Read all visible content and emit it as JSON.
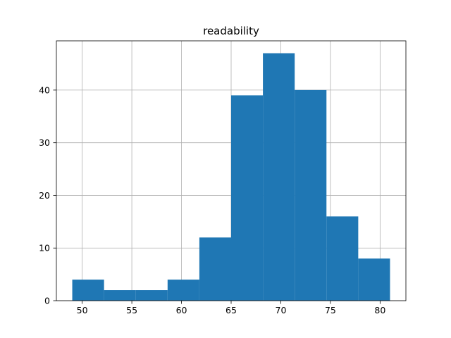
{
  "chart_data": {
    "type": "bar",
    "title": "readability",
    "xlabel": "",
    "ylabel": "",
    "bins": [
      {
        "x0": 49.0,
        "x1": 52.2,
        "value": 4
      },
      {
        "x0": 52.2,
        "x1": 55.4,
        "value": 2
      },
      {
        "x0": 55.4,
        "x1": 58.6,
        "value": 2
      },
      {
        "x0": 58.6,
        "x1": 61.8,
        "value": 4
      },
      {
        "x0": 61.8,
        "x1": 65.0,
        "value": 12
      },
      {
        "x0": 65.0,
        "x1": 68.2,
        "value": 39
      },
      {
        "x0": 68.2,
        "x1": 71.4,
        "value": 47
      },
      {
        "x0": 71.4,
        "x1": 74.6,
        "value": 40
      },
      {
        "x0": 74.6,
        "x1": 77.8,
        "value": 16
      },
      {
        "x0": 77.8,
        "x1": 81.0,
        "value": 8
      }
    ],
    "xlim": [
      47.4,
      82.6
    ],
    "ylim": [
      0,
      49.35
    ],
    "xticks": [
      50,
      55,
      60,
      65,
      70,
      75,
      80
    ],
    "yticks": [
      0,
      10,
      20,
      30,
      40
    ],
    "grid": true,
    "bar_color": "#1f77b4",
    "grid_color": "#b0b0b0"
  }
}
